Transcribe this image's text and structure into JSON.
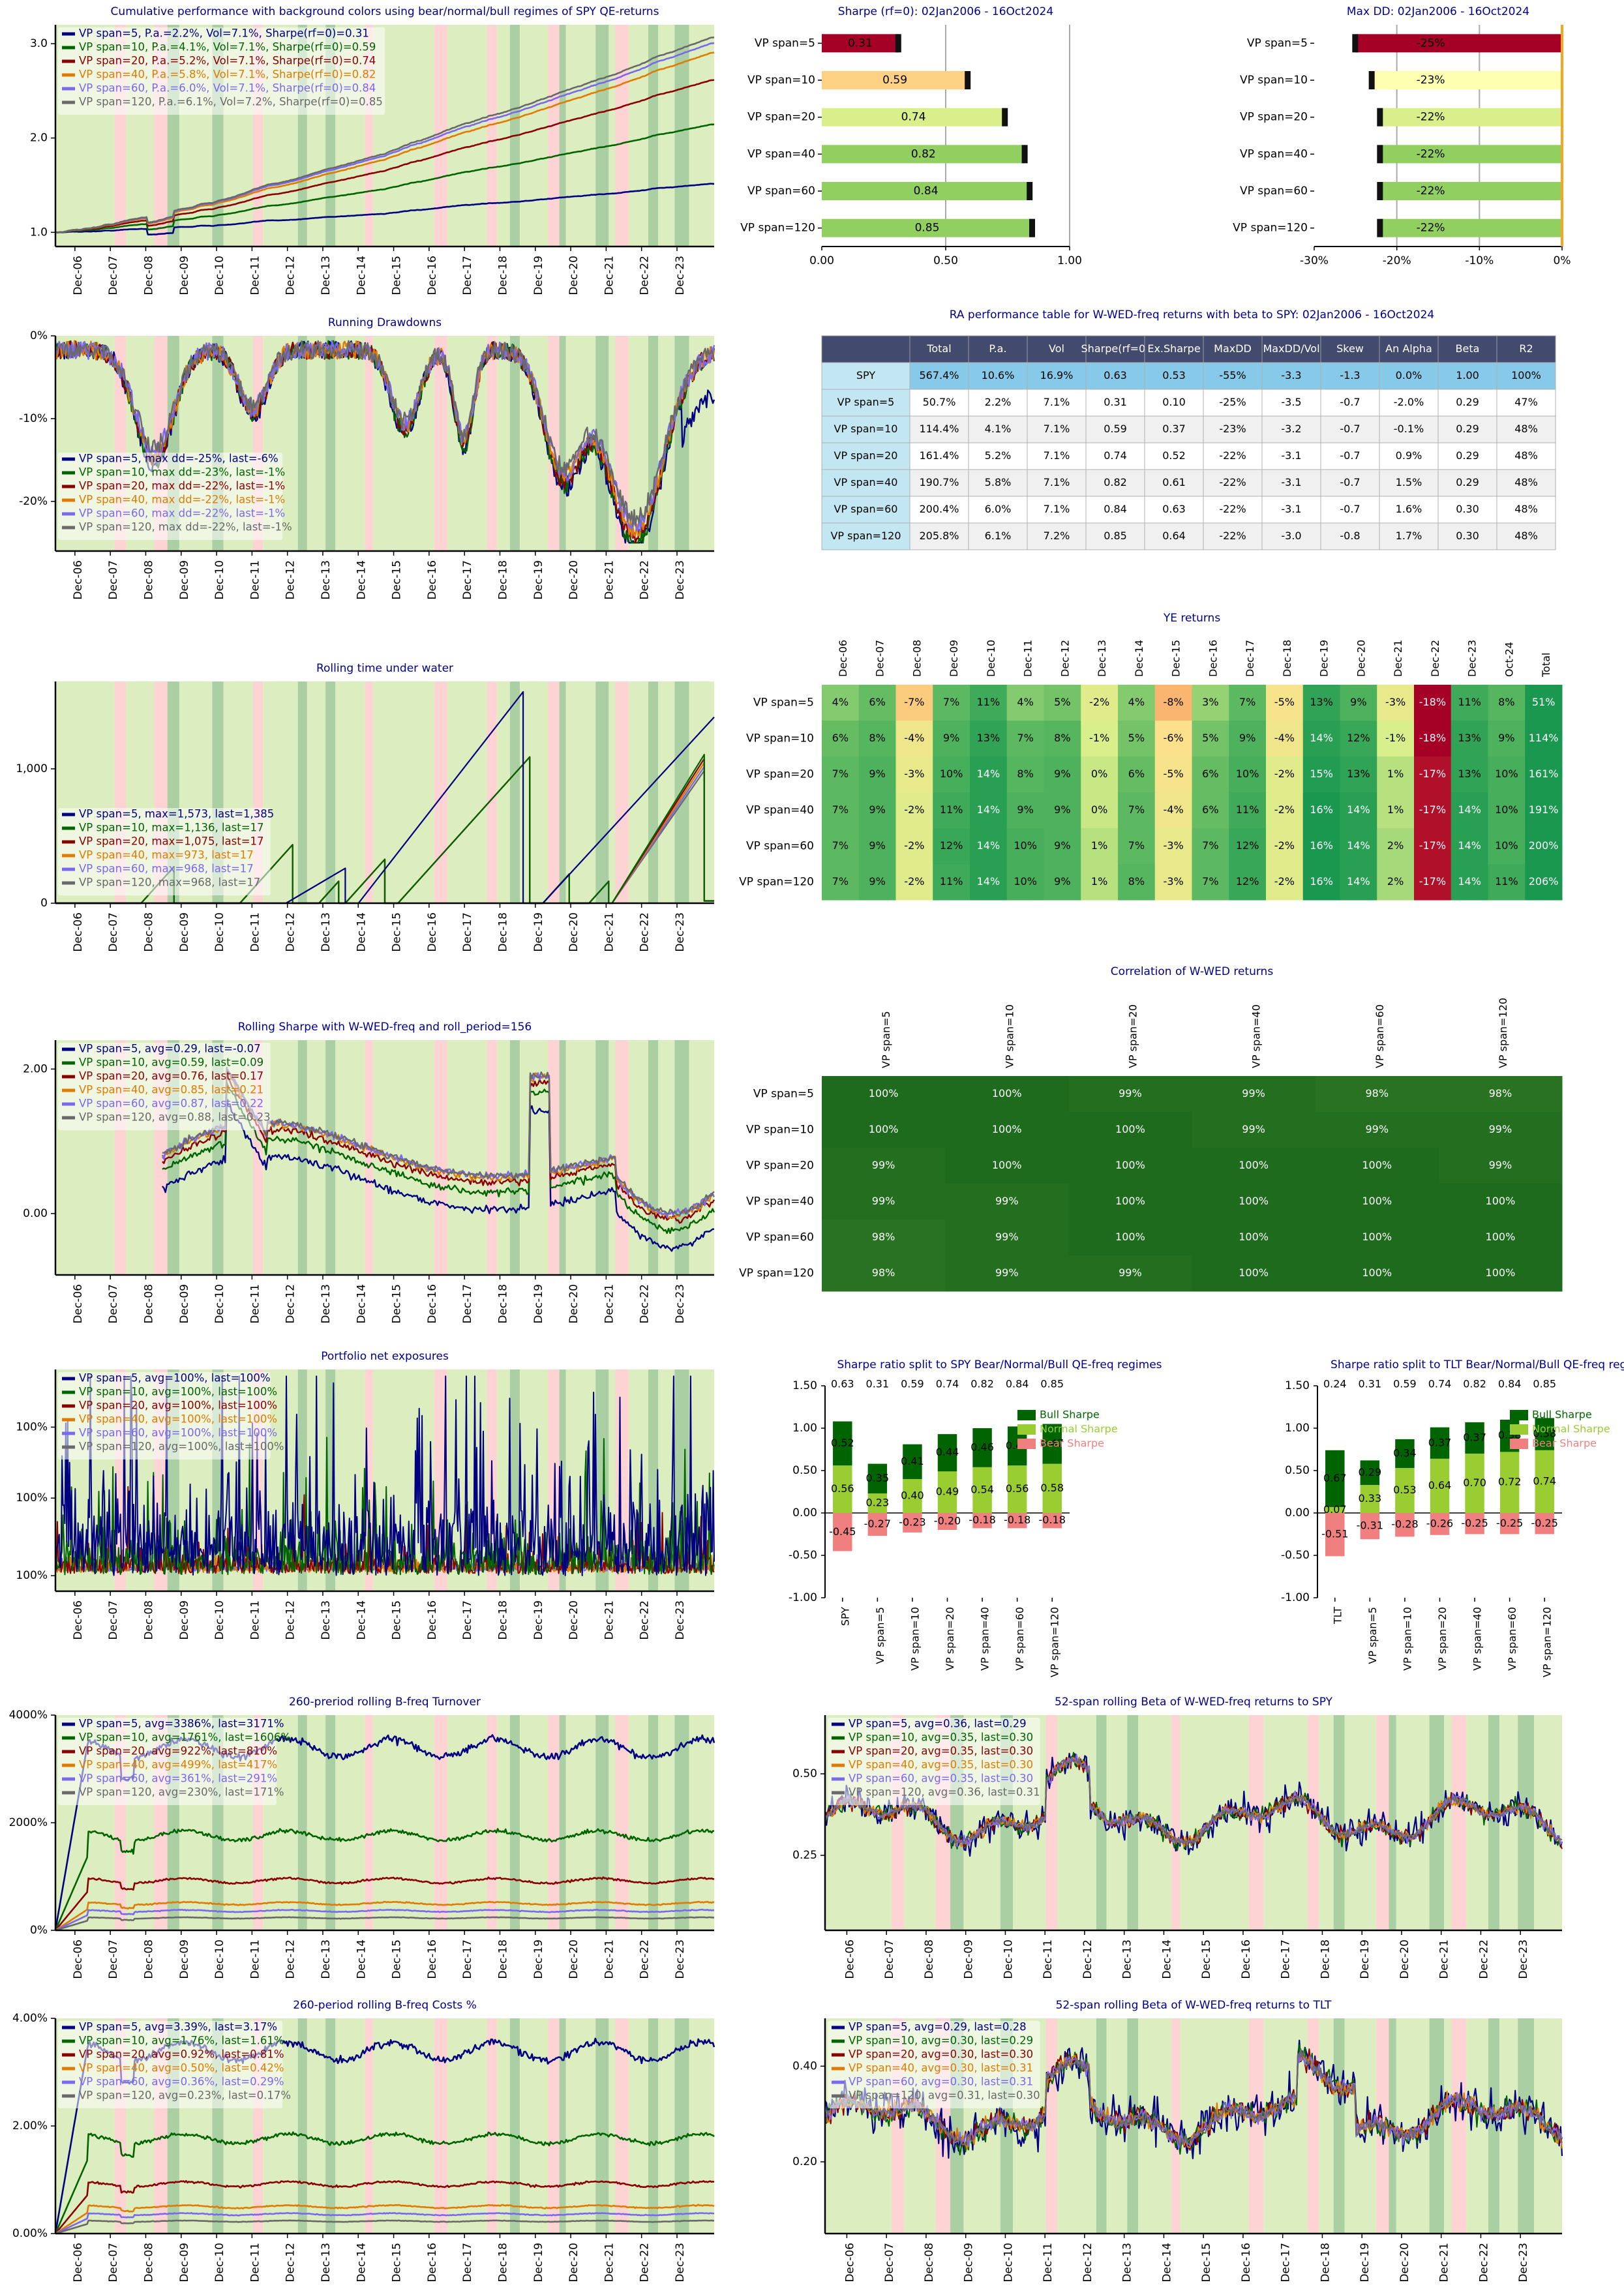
{
  "colors": {
    "bull": "#dcedc0",
    "normal": "#a9cfa3",
    "bear": "#fdd3d3",
    "series": [
      "#000080",
      "#006400",
      "#8b0000",
      "#e07b00",
      "#7b68ee",
      "#696969"
    ],
    "title": "#00008b"
  },
  "years": [
    "Dec-06",
    "Dec-07",
    "Dec-08",
    "Dec-09",
    "Dec-10",
    "Dec-11",
    "Dec-12",
    "Dec-13",
    "Dec-14",
    "Dec-15",
    "Dec-16",
    "Dec-17",
    "Dec-18",
    "Dec-19",
    "Dec-20",
    "Dec-21",
    "Dec-22",
    "Dec-23"
  ],
  "strategies": [
    "VP span=5",
    "VP span=10",
    "VP span=20",
    "VP span=40",
    "VP span=60",
    "VP span=120"
  ],
  "chart_data": [
    {
      "id": "cumperf",
      "type": "line",
      "title": "Cumulative performance with background colors using bear/normal/bull regimes of SPY QE-returns",
      "yticks": [
        "1.0",
        "2.0",
        "3.0"
      ],
      "ylim": [
        0.85,
        3.2
      ],
      "final": [
        1.51,
        2.14,
        2.61,
        2.9,
        3.0,
        3.06
      ],
      "legend": [
        "VP span=5, P.a.=2.2%, Vol=7.1%, Sharpe(rf=0)=0.31",
        "VP span=10, P.a.=4.1%, Vol=7.1%, Sharpe(rf=0)=0.59",
        "VP span=20, P.a.=5.2%, Vol=7.1%, Sharpe(rf=0)=0.74",
        "VP span=40, P.a.=5.8%, Vol=7.1%, Sharpe(rf=0)=0.82",
        "VP span=60, P.a.=6.0%, Vol=7.1%, Sharpe(rf=0)=0.84",
        "VP span=120, P.a.=6.1%, Vol=7.2%, Sharpe(rf=0)=0.85"
      ]
    },
    {
      "id": "sharpebar",
      "type": "bar",
      "title": "Sharpe (rf=0): 02Jan2006 - 16Oct2024",
      "categories": [
        "VP span=5",
        "VP span=10",
        "VP span=20",
        "VP span=40",
        "VP span=60",
        "VP span=120"
      ],
      "values": [
        0.31,
        0.59,
        0.74,
        0.82,
        0.84,
        0.85
      ],
      "labels": [
        "0.31",
        "0.59",
        "0.74",
        "0.82",
        "0.84",
        "0.85"
      ],
      "xticks": [
        "0.00",
        "0.50",
        "1.00"
      ],
      "xlim": [
        0,
        1.0
      ]
    },
    {
      "id": "maxddbar",
      "type": "bar",
      "title": "Max DD: 02Jan2006 - 16Oct2024",
      "categories": [
        "VP span=5",
        "VP span=10",
        "VP span=20",
        "VP span=40",
        "VP span=60",
        "VP span=120"
      ],
      "values": [
        -25,
        -23,
        -22,
        -22,
        -22,
        -22
      ],
      "labels": [
        "-25%",
        "-23%",
        "-22%",
        "-22%",
        "-22%",
        "-22%"
      ],
      "xticks": [
        "-30%",
        "-20%",
        "-10%",
        "0%"
      ],
      "xlim": [
        -30,
        0
      ]
    },
    {
      "id": "drawdowns",
      "type": "line",
      "title": "Running Drawdowns",
      "yticks": [
        "0%",
        "-10%",
        "-20%"
      ],
      "ylim": [
        -26,
        0
      ],
      "legend": [
        "VP span=5, max dd=-25%, last=-6%",
        "VP span=10, max dd=-23%, last=-1%",
        "VP span=20, max dd=-22%, last=-1%",
        "VP span=40, max dd=-22%, last=-1%",
        "VP span=60, max dd=-22%, last=-1%",
        "VP span=120, max dd=-22%, last=-1%"
      ]
    },
    {
      "id": "perftable",
      "type": "table",
      "title": "RA performance table for W-WED-freq returns with beta to SPY: 02Jan2006 - 16Oct2024",
      "columns": [
        "",
        "Total",
        "P.a.",
        "Vol",
        "Sharpe(rf=0)",
        "Ex.Sharpe",
        "MaxDD",
        "MaxDD/Vol",
        "Skew",
        "An Alpha",
        "Beta",
        "R2"
      ],
      "rows": [
        [
          "SPY",
          "567.4%",
          "10.6%",
          "16.9%",
          "0.63",
          "0.53",
          "-55%",
          "-3.3",
          "-1.3",
          "0.0%",
          "1.00",
          "100%"
        ],
        [
          "VP span=5",
          "50.7%",
          "2.2%",
          "7.1%",
          "0.31",
          "0.10",
          "-25%",
          "-3.5",
          "-0.7",
          "-2.0%",
          "0.29",
          "47%"
        ],
        [
          "VP span=10",
          "114.4%",
          "4.1%",
          "7.1%",
          "0.59",
          "0.37",
          "-23%",
          "-3.2",
          "-0.7",
          "-0.1%",
          "0.29",
          "48%"
        ],
        [
          "VP span=20",
          "161.4%",
          "5.2%",
          "7.1%",
          "0.74",
          "0.52",
          "-22%",
          "-3.1",
          "-0.7",
          "0.9%",
          "0.29",
          "48%"
        ],
        [
          "VP span=40",
          "190.7%",
          "5.8%",
          "7.1%",
          "0.82",
          "0.61",
          "-22%",
          "-3.1",
          "-0.7",
          "1.5%",
          "0.29",
          "48%"
        ],
        [
          "VP span=60",
          "200.4%",
          "6.0%",
          "7.1%",
          "0.84",
          "0.63",
          "-22%",
          "-3.1",
          "-0.7",
          "1.6%",
          "0.30",
          "48%"
        ],
        [
          "VP span=120",
          "205.8%",
          "6.1%",
          "7.2%",
          "0.85",
          "0.64",
          "-22%",
          "-3.0",
          "-0.8",
          "1.7%",
          "0.30",
          "48%"
        ]
      ]
    },
    {
      "id": "tuw",
      "type": "line",
      "title": "Rolling time under water",
      "yticks": [
        "0",
        "1,000"
      ],
      "ylim": [
        0,
        1650
      ],
      "legend": [
        "VP span=5, max=1,573, last=1,385",
        "VP span=10, max=1,136, last=17",
        "VP span=20, max=1,075, last=17",
        "VP span=40, max=973, last=17",
        "VP span=60, max=968, last=17",
        "VP span=120, max=968, last=17"
      ]
    },
    {
      "id": "yereturns",
      "type": "heatmap",
      "title": "YE returns",
      "columns": [
        "Dec-06",
        "Dec-07",
        "Dec-08",
        "Dec-09",
        "Dec-10",
        "Dec-11",
        "Dec-12",
        "Dec-13",
        "Dec-14",
        "Dec-15",
        "Dec-16",
        "Dec-17",
        "Dec-18",
        "Dec-19",
        "Dec-20",
        "Dec-21",
        "Dec-22",
        "Dec-23",
        "Oct-24",
        "Total"
      ],
      "rows": [
        "VP span=5",
        "VP span=10",
        "VP span=20",
        "VP span=40",
        "VP span=60",
        "VP span=120"
      ],
      "values": [
        [
          4,
          6,
          -7,
          7,
          11,
          4,
          5,
          -2,
          4,
          -8,
          3,
          7,
          -5,
          13,
          9,
          -3,
          -18,
          11,
          8,
          51
        ],
        [
          6,
          8,
          -4,
          9,
          13,
          7,
          8,
          -1,
          5,
          -6,
          5,
          9,
          -4,
          14,
          12,
          -1,
          -18,
          13,
          9,
          114
        ],
        [
          7,
          9,
          -3,
          10,
          14,
          8,
          9,
          0,
          6,
          -5,
          6,
          10,
          -2,
          15,
          13,
          1,
          -17,
          13,
          10,
          161
        ],
        [
          7,
          9,
          -2,
          11,
          14,
          9,
          9,
          0,
          7,
          -4,
          6,
          11,
          -2,
          16,
          14,
          1,
          -17,
          14,
          10,
          191
        ],
        [
          7,
          9,
          -2,
          12,
          14,
          10,
          9,
          1,
          7,
          -3,
          7,
          12,
          -2,
          16,
          14,
          2,
          -17,
          14,
          10,
          200
        ],
        [
          7,
          9,
          -2,
          11,
          14,
          10,
          9,
          1,
          8,
          -3,
          7,
          12,
          -2,
          16,
          14,
          2,
          -17,
          14,
          11,
          206
        ]
      ]
    },
    {
      "id": "corr",
      "type": "heatmap",
      "title": "Correlation of W-WED returns",
      "columns": [
        "VP span=5",
        "VP span=10",
        "VP span=20",
        "VP span=40",
        "VP span=60",
        "VP span=120"
      ],
      "rows": [
        "VP span=5",
        "VP span=10",
        "VP span=20",
        "VP span=40",
        "VP span=60",
        "VP span=120"
      ],
      "values": [
        [
          100,
          100,
          99,
          99,
          98,
          98
        ],
        [
          100,
          100,
          100,
          99,
          99,
          99
        ],
        [
          99,
          100,
          100,
          100,
          100,
          99
        ],
        [
          99,
          99,
          100,
          100,
          100,
          100
        ],
        [
          98,
          99,
          100,
          100,
          100,
          100
        ],
        [
          98,
          99,
          99,
          100,
          100,
          100
        ]
      ]
    },
    {
      "id": "rollsharpe",
      "type": "line",
      "title": "Rolling Sharpe with W-WED-freq and roll_period=156",
      "yticks": [
        "0.00",
        "2.00"
      ],
      "ylim": [
        -0.85,
        2.4
      ],
      "legend": [
        "VP span=5, avg=0.29, last=-0.07",
        "VP span=10, avg=0.59, last=0.09",
        "VP span=20, avg=0.76, last=0.17",
        "VP span=40, avg=0.85, last=0.21",
        "VP span=60, avg=0.87, last=0.22",
        "VP span=120, avg=0.88, last=0.23"
      ]
    },
    {
      "id": "sharpesplit_spy",
      "type": "bar",
      "title": "Sharpe ratio split to SPY Bear/Normal/Bull QE-freq regimes",
      "categories": [
        "SPY",
        "VP span=5",
        "VP span=10",
        "VP span=20",
        "VP span=40",
        "VP span=60",
        "VP span=120"
      ],
      "totals": [
        "0.63",
        "0.31",
        "0.59",
        "0.74",
        "0.82",
        "0.84",
        "0.85"
      ],
      "bull": [
        0.52,
        0.35,
        0.41,
        0.44,
        0.46,
        0.46,
        0.47
      ],
      "normal": [
        0.56,
        0.23,
        0.4,
        0.49,
        0.54,
        0.56,
        0.58
      ],
      "bear": [
        -0.45,
        -0.27,
        -0.23,
        -0.2,
        -0.18,
        -0.18,
        -0.18
      ],
      "legend": [
        "Bull Sharpe",
        "Normal Sharpe",
        "Bear Sharpe"
      ],
      "yticks": [
        "-1.00",
        "-0.50",
        "0.00",
        "0.50",
        "1.00",
        "1.50"
      ],
      "ylim": [
        -1,
        1.5
      ]
    },
    {
      "id": "sharpesplit_tlt",
      "type": "bar",
      "title": "Sharpe ratio split to TLT Bear/Normal/Bull QE-freq regimes",
      "categories": [
        "TLT",
        "VP span=5",
        "VP span=10",
        "VP span=20",
        "VP span=40",
        "VP span=60",
        "VP span=120"
      ],
      "totals": [
        "0.24",
        "0.31",
        "0.59",
        "0.74",
        "0.82",
        "0.84",
        "0.85"
      ],
      "bull": [
        0.67,
        0.29,
        0.34,
        0.37,
        0.37,
        0.38,
        0.38
      ],
      "normal": [
        0.07,
        0.33,
        0.53,
        0.64,
        0.7,
        0.72,
        0.74
      ],
      "bear": [
        -0.51,
        -0.31,
        -0.28,
        -0.26,
        -0.25,
        -0.25,
        -0.25
      ],
      "legend": [
        "Bull Sharpe",
        "Normal Sharpe",
        "Bear Sharpe"
      ],
      "yticks": [
        "-1.00",
        "-0.50",
        "0.00",
        "0.50",
        "1.00",
        "1.50"
      ],
      "ylim": [
        -1,
        1.5
      ]
    },
    {
      "id": "exposure",
      "type": "line",
      "title": "Portfolio net exposures",
      "yticks": [
        "100%",
        "100%",
        "100%"
      ],
      "legend": [
        "VP span=5, avg=100%, last=100%",
        "VP span=10, avg=100%, last=100%",
        "VP span=20, avg=100%, last=100%",
        "VP span=40, avg=100%, last=100%",
        "VP span=60, avg=100%, last=100%",
        "VP span=120, avg=100%, last=100%"
      ]
    },
    {
      "id": "turnover",
      "type": "line",
      "title": "260-preriod rolling B-freq Turnover",
      "yticks": [
        "0%",
        "2000%",
        "4000%"
      ],
      "ylim": [
        0,
        4000
      ],
      "levels": [
        3386,
        1761,
        922,
        499,
        361,
        230
      ],
      "legend": [
        "VP span=5, avg=3386%, last=3171%",
        "VP span=10, avg=1761%, last=1606%",
        "VP span=20, avg=922%, last=810%",
        "VP span=40, avg=499%, last=417%",
        "VP span=60, avg=361%, last=291%",
        "VP span=120, avg=230%, last=171%"
      ]
    },
    {
      "id": "beta_spy",
      "type": "line",
      "title": "52-span rolling Beta of W-WED-freq returns to SPY",
      "yticks": [
        "0.25",
        "0.50"
      ],
      "ylim": [
        0.02,
        0.68
      ],
      "legend": [
        "VP span=5, avg=0.36, last=0.29",
        "VP span=10, avg=0.35, last=0.30",
        "VP span=20, avg=0.35, last=0.30",
        "VP span=40, avg=0.35, last=0.30",
        "VP span=60, avg=0.35, last=0.30",
        "VP span=120, avg=0.36, last=0.31"
      ]
    },
    {
      "id": "costs",
      "type": "line",
      "title": "260-period rolling B-freq Costs %",
      "yticks": [
        "0.00%",
        "2.00%",
        "4.00%"
      ],
      "ylim": [
        0,
        4
      ],
      "levels": [
        3.39,
        1.76,
        0.92,
        0.5,
        0.36,
        0.23
      ],
      "legend": [
        "VP span=5, avg=3.39%, last=3.17%",
        "VP span=10, avg=1.76%, last=1.61%",
        "VP span=20, avg=0.92%, last=0.81%",
        "VP span=40, avg=0.50%, last=0.42%",
        "VP span=60, avg=0.36%, last=0.29%",
        "VP span=120, avg=0.23%, last=0.17%"
      ]
    },
    {
      "id": "beta_tlt",
      "type": "line",
      "title": "52-span rolling Beta of W-WED-freq returns to TLT",
      "yticks": [
        "0.20",
        "0.40"
      ],
      "ylim": [
        0.05,
        0.5
      ],
      "legend": [
        "VP span=5, avg=0.29, last=0.28",
        "VP span=10, avg=0.30, last=0.29",
        "VP span=20, avg=0.30, last=0.30",
        "VP span=40, avg=0.30, last=0.31",
        "VP span=60, avg=0.30, last=0.31",
        "VP span=120, avg=0.31, last=0.30"
      ]
    }
  ]
}
